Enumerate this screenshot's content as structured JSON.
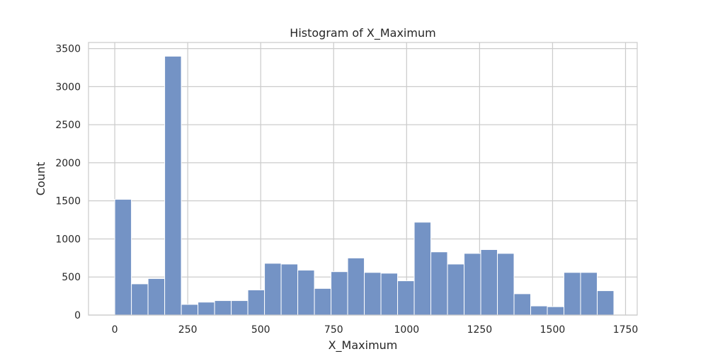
{
  "chart_data": {
    "type": "bar",
    "title": "Histogram of X_Maximum",
    "xlabel": "X_Maximum",
    "ylabel": "Count",
    "xlim": [
      -90,
      1790
    ],
    "ylim": [
      0,
      3580
    ],
    "xticks": [
      0,
      250,
      500,
      750,
      1000,
      1250,
      1500,
      1750
    ],
    "yticks": [
      0,
      500,
      1000,
      1500,
      2000,
      2500,
      3000,
      3500
    ],
    "grid": true,
    "bar_color": "#7493c5",
    "bin_edges": [
      0,
      57,
      114,
      171,
      228,
      285,
      342,
      399,
      456,
      513,
      570,
      627,
      684,
      741,
      798,
      855,
      912,
      969,
      1026,
      1083,
      1140,
      1197,
      1254,
      1311,
      1368,
      1425,
      1482,
      1539,
      1596,
      1653,
      1710
    ],
    "values": [
      1520,
      410,
      480,
      3400,
      140,
      170,
      190,
      190,
      330,
      680,
      670,
      590,
      350,
      570,
      750,
      560,
      550,
      450,
      1220,
      830,
      670,
      810,
      860,
      810,
      280,
      120,
      110,
      560,
      560,
      320
    ]
  }
}
